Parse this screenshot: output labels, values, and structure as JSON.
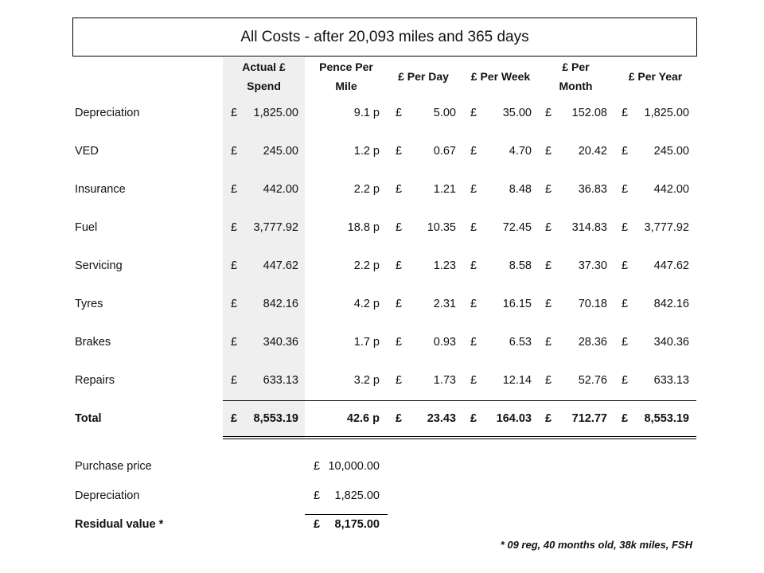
{
  "title": "All Costs - after 20,093  miles and 365 days",
  "headers": [
    "Actual £\nSpend",
    "Pence Per\nMile",
    "£ Per Day",
    "£ Per Week",
    "£ Per\nMonth",
    "£ Per Year"
  ],
  "currency_symbol": "£",
  "rows": [
    {
      "label": "Depreciation",
      "actual": "1,825.00",
      "ppm": "9.1 p",
      "day": "5.00",
      "week": "35.00",
      "month": "152.08",
      "year": "1,825.00"
    },
    {
      "label": "VED",
      "actual": "245.00",
      "ppm": "1.2 p",
      "day": "0.67",
      "week": "4.70",
      "month": "20.42",
      "year": "245.00"
    },
    {
      "label": "Insurance",
      "actual": "442.00",
      "ppm": "2.2 p",
      "day": "1.21",
      "week": "8.48",
      "month": "36.83",
      "year": "442.00"
    },
    {
      "label": "Fuel",
      "actual": "3,777.92",
      "ppm": "18.8 p",
      "day": "10.35",
      "week": "72.45",
      "month": "314.83",
      "year": "3,777.92"
    },
    {
      "label": "Servicing",
      "actual": "447.62",
      "ppm": "2.2 p",
      "day": "1.23",
      "week": "8.58",
      "month": "37.30",
      "year": "447.62"
    },
    {
      "label": "Tyres",
      "actual": "842.16",
      "ppm": "4.2 p",
      "day": "2.31",
      "week": "16.15",
      "month": "70.18",
      "year": "842.16"
    },
    {
      "label": "Brakes",
      "actual": "340.36",
      "ppm": "1.7 p",
      "day": "0.93",
      "week": "6.53",
      "month": "28.36",
      "year": "340.36"
    },
    {
      "label": "Repairs",
      "actual": "633.13",
      "ppm": "3.2 p",
      "day": "1.73",
      "week": "12.14",
      "month": "52.76",
      "year": "633.13"
    }
  ],
  "total": {
    "label": "Total",
    "actual": "8,553.19",
    "ppm": "42.6 p",
    "day": "23.43",
    "week": "164.03",
    "month": "712.77",
    "year": "8,553.19"
  },
  "residual": [
    {
      "label": "Purchase price",
      "value": "10,000.00"
    },
    {
      "label": "Depreciation",
      "value": "1,825.00"
    },
    {
      "label": "Residual value *",
      "value": "8,175.00"
    }
  ],
  "footnote": "* 09 reg, 40 months old, 38k miles, FSH"
}
